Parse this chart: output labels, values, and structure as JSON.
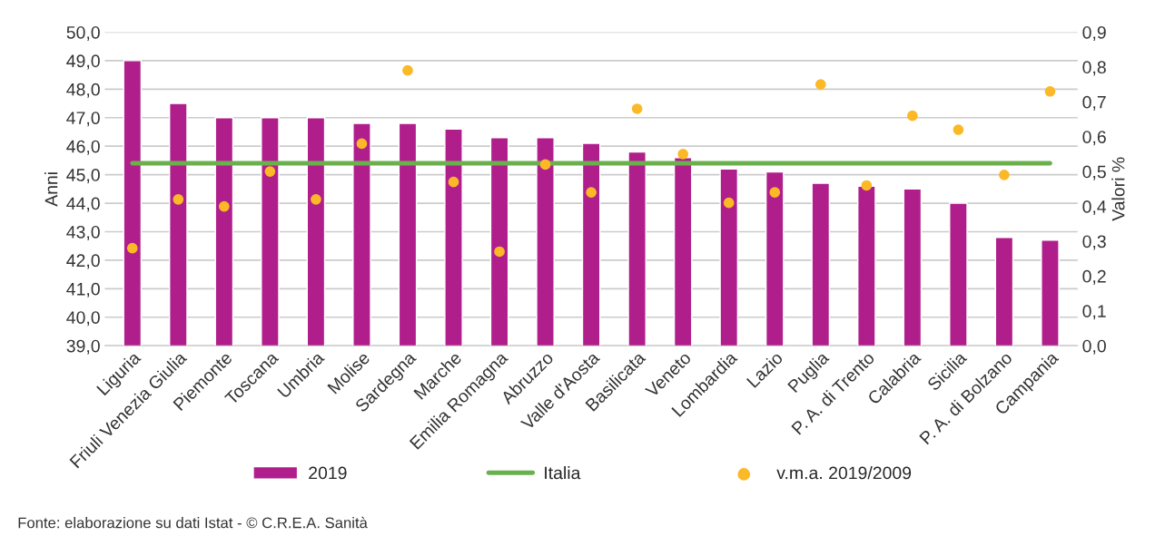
{
  "chart_data": {
    "type": "bar",
    "categories": [
      "Liguria",
      "Friuli Venezia Giulia",
      "Piemonte",
      "Toscana",
      "Umbria",
      "Molise",
      "Sardegna",
      "Marche",
      "Emilia Romagna",
      "Abruzzo",
      "Valle d'Aosta",
      "Basilicata",
      "Veneto",
      "Lombardia",
      "Lazio",
      "Puglia",
      "P. A. di Trento",
      "Calabria",
      "Sicilia",
      "P. A. di Bolzano",
      "Campania"
    ],
    "series": [
      {
        "name": "2019",
        "color": "#b01e8c",
        "values": [
          49.0,
          47.5,
          47.0,
          47.0,
          47.0,
          46.8,
          46.8,
          46.6,
          46.3,
          46.3,
          46.1,
          45.8,
          45.6,
          45.2,
          45.1,
          44.7,
          44.6,
          44.5,
          44.0,
          42.8,
          42.7
        ]
      },
      {
        "name": "Italia",
        "type": "line",
        "color": "#6ab04c",
        "values": [
          45.4,
          45.4,
          45.4,
          45.4,
          45.4,
          45.4,
          45.4,
          45.4,
          45.4,
          45.4,
          45.4,
          45.4,
          45.4,
          45.4,
          45.4,
          45.4,
          45.4,
          45.4,
          45.4,
          45.4,
          45.4
        ]
      },
      {
        "name": "v.m.a. 2019/2009",
        "type": "scatter",
        "axis": "y2",
        "marker": "circle",
        "color": "#fbb927",
        "values": [
          0.28,
          0.42,
          0.4,
          0.5,
          0.42,
          0.58,
          0.79,
          0.47,
          0.27,
          0.52,
          0.44,
          0.68,
          0.55,
          0.41,
          0.44,
          0.75,
          0.46,
          0.66,
          0.62,
          0.49,
          0.73
        ]
      }
    ],
    "ylabel": "Anni",
    "y2label": "Valori %",
    "ylim": [
      39,
      50
    ],
    "yticks": [
      {
        "value": 39,
        "label": "39,0"
      },
      {
        "value": 40,
        "label": "40,0"
      },
      {
        "value": 41,
        "label": "41,0"
      },
      {
        "value": 42,
        "label": "42,0"
      },
      {
        "value": 43,
        "label": "43,0"
      },
      {
        "value": 44,
        "label": "44,0"
      },
      {
        "value": 45,
        "label": "45,0"
      },
      {
        "value": 46,
        "label": "46,0"
      },
      {
        "value": 47,
        "label": "47,0"
      },
      {
        "value": 48,
        "label": "48,0"
      },
      {
        "value": 49,
        "label": "49,0"
      },
      {
        "value": 50,
        "label": "50,0"
      }
    ],
    "y2lim": [
      0,
      0.9
    ],
    "y2ticks": [
      {
        "value": 0,
        "label": "0,0"
      },
      {
        "value": 0.1,
        "label": "0,1"
      },
      {
        "value": 0.2,
        "label": "0,2"
      },
      {
        "value": 0.3,
        "label": "0,3"
      },
      {
        "value": 0.4,
        "label": "0,4"
      },
      {
        "value": 0.5,
        "label": "0,5"
      },
      {
        "value": 0.6,
        "label": "0,6"
      },
      {
        "value": 0.7,
        "label": "0,7"
      },
      {
        "value": 0.8,
        "label": "0,8"
      },
      {
        "value": 0.9,
        "label": "0,9"
      }
    ],
    "grid": "y",
    "legend": "bottom",
    "annotations": [
      "Fonte: elaborazione su dati Istat - © C.R.E.A. Sanità"
    ]
  }
}
